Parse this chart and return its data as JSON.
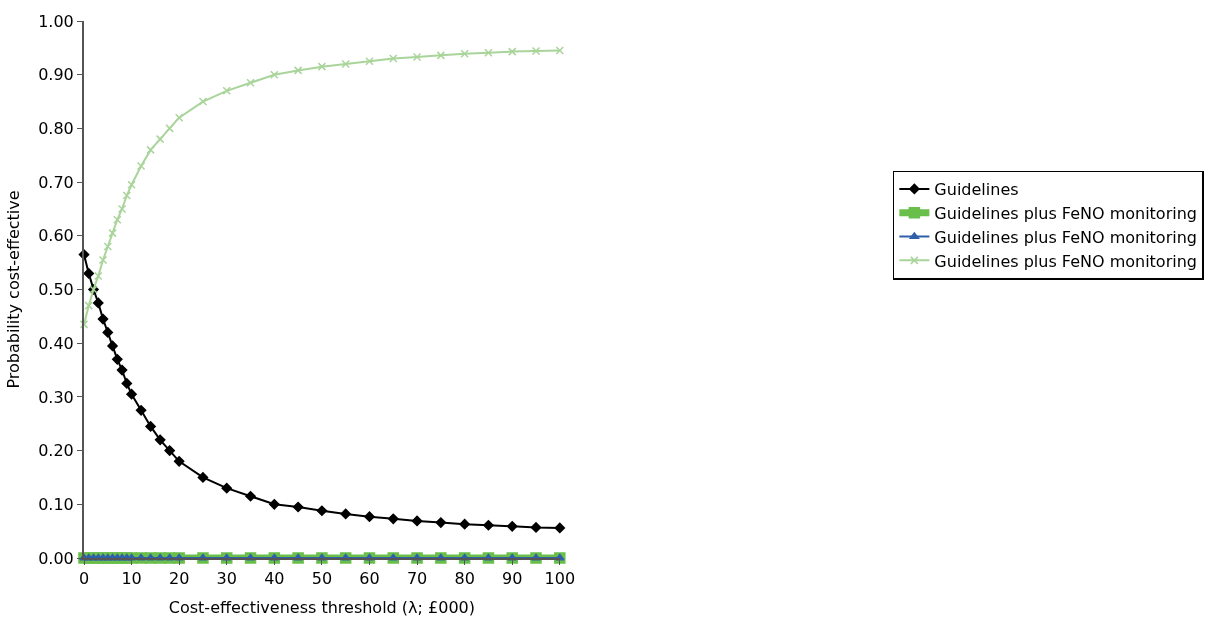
{
  "chart_data": {
    "type": "line",
    "xlabel": "Cost-effectiveness threshold (λ; £000)",
    "ylabel": "Probability cost-effective",
    "x": [
      0,
      1,
      2,
      3,
      4,
      5,
      6,
      7,
      8,
      9,
      10,
      12,
      14,
      16,
      18,
      20,
      25,
      30,
      35,
      40,
      45,
      50,
      55,
      60,
      65,
      70,
      75,
      80,
      85,
      90,
      95,
      100
    ],
    "series": [
      {
        "name": "Guidelines",
        "color": "#000000",
        "marker": "diamond",
        "values": [
          0.565,
          0.53,
          0.5,
          0.475,
          0.445,
          0.42,
          0.395,
          0.37,
          0.35,
          0.325,
          0.305,
          0.275,
          0.245,
          0.22,
          0.2,
          0.18,
          0.15,
          0.13,
          0.115,
          0.1,
          0.095,
          0.088,
          0.082,
          0.077,
          0.073,
          0.069,
          0.066,
          0.063,
          0.061,
          0.059,
          0.057,
          0.056
        ]
      },
      {
        "name": "Guidelines plus FeNO monitoring",
        "color": "#6abf4b",
        "marker": "square",
        "values": [
          0,
          0,
          0,
          0,
          0,
          0,
          0,
          0,
          0,
          0,
          0,
          0,
          0,
          0,
          0,
          0,
          0,
          0,
          0,
          0,
          0,
          0,
          0,
          0,
          0,
          0,
          0,
          0,
          0,
          0,
          0,
          0
        ]
      },
      {
        "name": "Guidelines plus FeNO monitoring",
        "color": "#3060aa",
        "marker": "triangle",
        "values": [
          0,
          0,
          0,
          0,
          0,
          0,
          0,
          0,
          0,
          0,
          0,
          0,
          0,
          0,
          0,
          0,
          0,
          0,
          0,
          0,
          0,
          0,
          0,
          0,
          0,
          0,
          0,
          0,
          0,
          0,
          0,
          0
        ]
      },
      {
        "name": "Guidelines plus FeNO monitoring",
        "color": "#a9d49a",
        "marker": "cross",
        "values": [
          0.435,
          0.47,
          0.5,
          0.525,
          0.555,
          0.58,
          0.605,
          0.63,
          0.65,
          0.675,
          0.695,
          0.73,
          0.76,
          0.78,
          0.8,
          0.82,
          0.85,
          0.87,
          0.885,
          0.9,
          0.908,
          0.915,
          0.92,
          0.925,
          0.93,
          0.933,
          0.936,
          0.939,
          0.941,
          0.943,
          0.944,
          0.945
        ]
      }
    ],
    "xlim": [
      0,
      100
    ],
    "xticks": [
      0,
      10,
      20,
      30,
      40,
      50,
      60,
      70,
      80,
      90,
      100
    ],
    "ylim": [
      0,
      1
    ],
    "yticks": [
      {
        "value": 0,
        "label": "0.00"
      },
      {
        "value": 0.1,
        "label": "0.10"
      },
      {
        "value": 0.2,
        "label": "0.20"
      },
      {
        "value": 0.3,
        "label": "0.30"
      },
      {
        "value": 0.4,
        "label": "0.40"
      },
      {
        "value": 0.5,
        "label": "0.50"
      },
      {
        "value": 0.6,
        "label": "0.60"
      },
      {
        "value": 0.7,
        "label": "0.70"
      },
      {
        "value": 0.8,
        "label": "0.80"
      },
      {
        "value": 0.9,
        "label": "0.90"
      },
      {
        "value": 1,
        "label": "1.00"
      }
    ],
    "legend": "right",
    "line_style": "solid"
  }
}
